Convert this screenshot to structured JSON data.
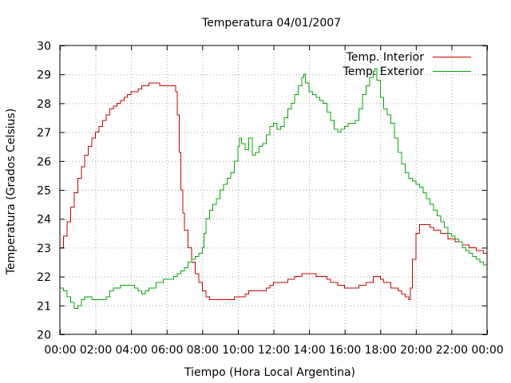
{
  "chart_data": {
    "type": "line",
    "title": "Temperatura 04/01/2007",
    "xlabel": "Tiempo (Hora Local Argentina)",
    "ylabel": "Temperatura (Grados Celsius)",
    "xlim": [
      0,
      24
    ],
    "ylim": [
      20,
      30
    ],
    "grid": true,
    "legend_position": "top-right",
    "x_ticks": [
      {
        "value": 0,
        "label": "00:00"
      },
      {
        "value": 2,
        "label": "02:00"
      },
      {
        "value": 4,
        "label": "04:00"
      },
      {
        "value": 6,
        "label": "06:00"
      },
      {
        "value": 8,
        "label": "08:00"
      },
      {
        "value": 10,
        "label": "10:00"
      },
      {
        "value": 12,
        "label": "12:00"
      },
      {
        "value": 14,
        "label": "14:00"
      },
      {
        "value": 16,
        "label": "16:00"
      },
      {
        "value": 18,
        "label": "18:00"
      },
      {
        "value": 20,
        "label": "20:00"
      },
      {
        "value": 22,
        "label": "22:00"
      },
      {
        "value": 24,
        "label": "00:00"
      }
    ],
    "y_ticks": [
      {
        "value": 20,
        "label": "20"
      },
      {
        "value": 21,
        "label": "21"
      },
      {
        "value": 22,
        "label": "22"
      },
      {
        "value": 23,
        "label": "23"
      },
      {
        "value": 24,
        "label": "24"
      },
      {
        "value": 25,
        "label": "25"
      },
      {
        "value": 26,
        "label": "26"
      },
      {
        "value": 27,
        "label": "27"
      },
      {
        "value": 28,
        "label": "28"
      },
      {
        "value": 29,
        "label": "29"
      },
      {
        "value": 30,
        "label": "30"
      }
    ],
    "series": [
      {
        "name": "Temp. Interior",
        "color": "#cc0000",
        "points": [
          [
            0.0,
            23.0
          ],
          [
            0.2,
            23.4
          ],
          [
            0.4,
            23.9
          ],
          [
            0.6,
            24.4
          ],
          [
            0.8,
            24.9
          ],
          [
            1.0,
            25.4
          ],
          [
            1.2,
            25.8
          ],
          [
            1.4,
            26.2
          ],
          [
            1.6,
            26.5
          ],
          [
            1.8,
            26.8
          ],
          [
            2.0,
            27.0
          ],
          [
            2.2,
            27.2
          ],
          [
            2.4,
            27.4
          ],
          [
            2.6,
            27.6
          ],
          [
            2.8,
            27.8
          ],
          [
            3.0,
            27.9
          ],
          [
            3.2,
            28.0
          ],
          [
            3.4,
            28.1
          ],
          [
            3.6,
            28.2
          ],
          [
            3.8,
            28.3
          ],
          [
            4.0,
            28.4
          ],
          [
            4.2,
            28.4
          ],
          [
            4.4,
            28.5
          ],
          [
            4.6,
            28.6
          ],
          [
            4.8,
            28.6
          ],
          [
            5.0,
            28.7
          ],
          [
            5.4,
            28.7
          ],
          [
            5.6,
            28.6
          ],
          [
            6.0,
            28.6
          ],
          [
            6.4,
            28.6
          ],
          [
            6.5,
            28.4
          ],
          [
            6.6,
            27.6
          ],
          [
            6.7,
            26.3
          ],
          [
            6.8,
            25.0
          ],
          [
            6.9,
            24.2
          ],
          [
            7.0,
            23.6
          ],
          [
            7.2,
            23.0
          ],
          [
            7.4,
            22.5
          ],
          [
            7.6,
            22.1
          ],
          [
            7.8,
            21.8
          ],
          [
            8.0,
            21.5
          ],
          [
            8.2,
            21.3
          ],
          [
            8.4,
            21.2
          ],
          [
            9.0,
            21.2
          ],
          [
            9.6,
            21.2
          ],
          [
            9.8,
            21.3
          ],
          [
            10.2,
            21.3
          ],
          [
            10.4,
            21.4
          ],
          [
            10.6,
            21.5
          ],
          [
            11.0,
            21.5
          ],
          [
            11.4,
            21.5
          ],
          [
            11.6,
            21.6
          ],
          [
            11.8,
            21.7
          ],
          [
            12.0,
            21.8
          ],
          [
            12.4,
            21.8
          ],
          [
            12.8,
            21.9
          ],
          [
            13.2,
            22.0
          ],
          [
            13.6,
            22.1
          ],
          [
            14.0,
            22.1
          ],
          [
            14.4,
            22.0
          ],
          [
            14.8,
            22.0
          ],
          [
            15.0,
            21.9
          ],
          [
            15.2,
            21.8
          ],
          [
            15.6,
            21.7
          ],
          [
            16.0,
            21.6
          ],
          [
            16.4,
            21.6
          ],
          [
            16.8,
            21.7
          ],
          [
            17.2,
            21.8
          ],
          [
            17.6,
            22.0
          ],
          [
            17.8,
            22.0
          ],
          [
            18.0,
            21.9
          ],
          [
            18.2,
            21.8
          ],
          [
            18.6,
            21.6
          ],
          [
            19.0,
            21.5
          ],
          [
            19.2,
            21.4
          ],
          [
            19.4,
            21.3
          ],
          [
            19.6,
            21.2
          ],
          [
            19.7,
            21.6
          ],
          [
            19.8,
            22.6
          ],
          [
            20.0,
            23.5
          ],
          [
            20.2,
            23.8
          ],
          [
            20.6,
            23.8
          ],
          [
            20.8,
            23.7
          ],
          [
            21.0,
            23.6
          ],
          [
            21.4,
            23.5
          ],
          [
            21.8,
            23.3
          ],
          [
            22.2,
            23.2
          ],
          [
            22.6,
            23.1
          ],
          [
            23.0,
            23.0
          ],
          [
            23.4,
            22.9
          ],
          [
            23.8,
            22.8
          ],
          [
            24.0,
            22.8
          ]
        ]
      },
      {
        "name": "Temp. Exterior",
        "color": "#00aa00",
        "points": [
          [
            0.0,
            21.6
          ],
          [
            0.2,
            21.5
          ],
          [
            0.4,
            21.3
          ],
          [
            0.6,
            21.1
          ],
          [
            0.8,
            20.9
          ],
          [
            1.0,
            21.0
          ],
          [
            1.2,
            21.2
          ],
          [
            1.4,
            21.3
          ],
          [
            1.6,
            21.3
          ],
          [
            1.8,
            21.2
          ],
          [
            2.0,
            21.2
          ],
          [
            2.4,
            21.2
          ],
          [
            2.6,
            21.3
          ],
          [
            2.8,
            21.5
          ],
          [
            3.0,
            21.6
          ],
          [
            3.4,
            21.7
          ],
          [
            4.0,
            21.7
          ],
          [
            4.2,
            21.6
          ],
          [
            4.4,
            21.5
          ],
          [
            4.6,
            21.4
          ],
          [
            4.8,
            21.5
          ],
          [
            5.0,
            21.6
          ],
          [
            5.4,
            21.8
          ],
          [
            5.8,
            21.9
          ],
          [
            6.2,
            21.9
          ],
          [
            6.4,
            22.0
          ],
          [
            6.6,
            22.1
          ],
          [
            6.8,
            22.2
          ],
          [
            7.0,
            22.3
          ],
          [
            7.2,
            22.5
          ],
          [
            7.4,
            22.6
          ],
          [
            7.6,
            22.7
          ],
          [
            7.8,
            22.8
          ],
          [
            8.0,
            23.0
          ],
          [
            8.1,
            23.5
          ],
          [
            8.2,
            24.0
          ],
          [
            8.4,
            24.3
          ],
          [
            8.6,
            24.5
          ],
          [
            8.8,
            24.7
          ],
          [
            9.0,
            25.0
          ],
          [
            9.2,
            25.2
          ],
          [
            9.4,
            25.4
          ],
          [
            9.6,
            25.6
          ],
          [
            9.8,
            26.0
          ],
          [
            10.0,
            26.5
          ],
          [
            10.1,
            26.8
          ],
          [
            10.2,
            26.6
          ],
          [
            10.4,
            26.4
          ],
          [
            10.6,
            26.8
          ],
          [
            10.8,
            26.2
          ],
          [
            11.0,
            26.3
          ],
          [
            11.2,
            26.5
          ],
          [
            11.4,
            26.6
          ],
          [
            11.6,
            26.9
          ],
          [
            11.8,
            27.2
          ],
          [
            12.0,
            27.3
          ],
          [
            12.2,
            27.1
          ],
          [
            12.4,
            27.2
          ],
          [
            12.6,
            27.5
          ],
          [
            12.8,
            27.8
          ],
          [
            13.0,
            28.0
          ],
          [
            13.2,
            28.3
          ],
          [
            13.4,
            28.6
          ],
          [
            13.6,
            28.9
          ],
          [
            13.7,
            29.0
          ],
          [
            13.8,
            28.7
          ],
          [
            14.0,
            28.4
          ],
          [
            14.2,
            28.3
          ],
          [
            14.4,
            28.2
          ],
          [
            14.6,
            28.1
          ],
          [
            14.8,
            28.0
          ],
          [
            15.0,
            27.7
          ],
          [
            15.2,
            27.4
          ],
          [
            15.4,
            27.1
          ],
          [
            15.6,
            27.0
          ],
          [
            15.8,
            27.1
          ],
          [
            16.0,
            27.2
          ],
          [
            16.2,
            27.3
          ],
          [
            16.4,
            27.3
          ],
          [
            16.6,
            27.4
          ],
          [
            16.8,
            27.8
          ],
          [
            17.0,
            28.3
          ],
          [
            17.2,
            28.6
          ],
          [
            17.4,
            28.9
          ],
          [
            17.6,
            29.1
          ],
          [
            17.7,
            29.2
          ],
          [
            17.8,
            28.8
          ],
          [
            18.0,
            28.2
          ],
          [
            18.2,
            27.8
          ],
          [
            18.4,
            27.6
          ],
          [
            18.6,
            27.3
          ],
          [
            18.8,
            26.8
          ],
          [
            19.0,
            26.3
          ],
          [
            19.2,
            25.9
          ],
          [
            19.4,
            25.6
          ],
          [
            19.6,
            25.4
          ],
          [
            19.8,
            25.3
          ],
          [
            20.0,
            25.2
          ],
          [
            20.2,
            25.1
          ],
          [
            20.4,
            24.9
          ],
          [
            20.6,
            24.7
          ],
          [
            20.8,
            24.5
          ],
          [
            21.0,
            24.3
          ],
          [
            21.2,
            24.1
          ],
          [
            21.4,
            23.9
          ],
          [
            21.6,
            23.7
          ],
          [
            21.8,
            23.5
          ],
          [
            22.0,
            23.4
          ],
          [
            22.2,
            23.3
          ],
          [
            22.4,
            23.2
          ],
          [
            22.6,
            23.0
          ],
          [
            22.8,
            22.9
          ],
          [
            23.0,
            22.8
          ],
          [
            23.2,
            22.7
          ],
          [
            23.4,
            22.6
          ],
          [
            23.6,
            22.5
          ],
          [
            23.8,
            22.4
          ],
          [
            24.0,
            22.3
          ]
        ]
      }
    ]
  }
}
